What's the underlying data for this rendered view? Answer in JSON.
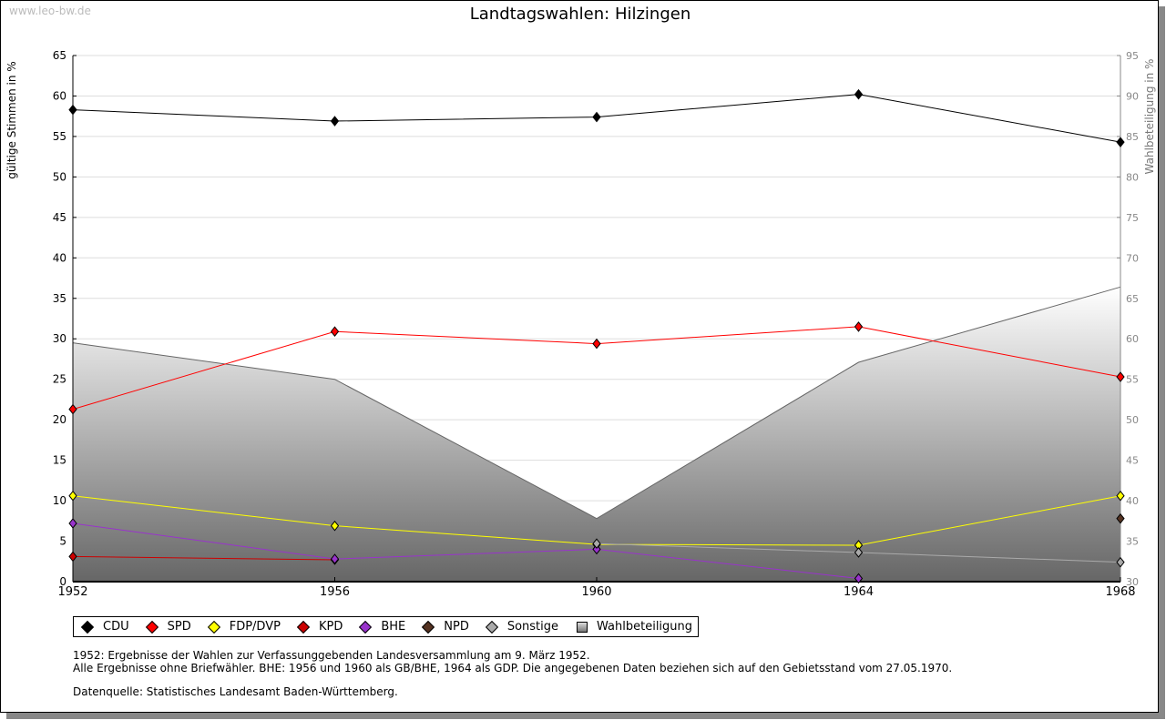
{
  "watermark": "www.leo-bw.de",
  "notes": [
    "1952: Ergebnisse der Wahlen zur Verfassunggebenden Landesversammlung am 9. März 1952.",
    "Alle Ergebnisse ohne Briefwähler. BHE: 1956 und 1960 als GB/BHE, 1964 als GDP. Die angegebenen Daten beziehen sich auf den Gebietsstand vom 27.05.1970.",
    "Datenquelle: Statistisches Landesamt Baden-Württemberg."
  ],
  "chart_data": {
    "type": "line",
    "title": "Landtagswahlen: Hilzingen",
    "ylabel": "gültige Stimmen in %",
    "y2label": "Wahlbeteiligung in %",
    "ylim": [
      0,
      65
    ],
    "y2lim": [
      30,
      95
    ],
    "yticks": [
      "0",
      "5",
      "10",
      "15",
      "20",
      "25",
      "30",
      "35",
      "40",
      "45",
      "50",
      "55",
      "60",
      "65"
    ],
    "y2ticks": [
      "30",
      "35",
      "40",
      "45",
      "50",
      "55",
      "60",
      "65",
      "70",
      "75",
      "80",
      "85",
      "90",
      "95"
    ],
    "x": [
      "1952",
      "1956",
      "1960",
      "1964",
      "1968"
    ],
    "grid": true,
    "legend_position": "bottom",
    "series": [
      {
        "name": "CDU",
        "color": "#000000",
        "values": [
          58.3,
          56.9,
          57.4,
          60.2,
          54.3
        ]
      },
      {
        "name": "SPD",
        "color": "#ff0000",
        "values": [
          21.3,
          30.9,
          29.4,
          31.5,
          25.3
        ]
      },
      {
        "name": "FDP/DVP",
        "color": "#ffff00",
        "values": [
          10.6,
          6.9,
          4.6,
          4.5,
          10.6
        ]
      },
      {
        "name": "KPD",
        "color": "#cc0000",
        "values": [
          3.1,
          2.7,
          null,
          null,
          null
        ]
      },
      {
        "name": "BHE",
        "color": "#9933cc",
        "values": [
          7.2,
          2.8,
          4.0,
          0.4,
          null
        ]
      },
      {
        "name": "NPD",
        "color": "#553322",
        "values": [
          null,
          null,
          null,
          null,
          7.8
        ]
      },
      {
        "name": "Sonstige",
        "color": "#aaaaaa",
        "values": [
          null,
          null,
          4.7,
          3.6,
          2.4
        ]
      }
    ],
    "area": {
      "name": "Wahlbeteiligung",
      "axis": "right",
      "values": [
        59.5,
        55.0,
        37.8,
        57.1,
        66.4
      ]
    }
  }
}
